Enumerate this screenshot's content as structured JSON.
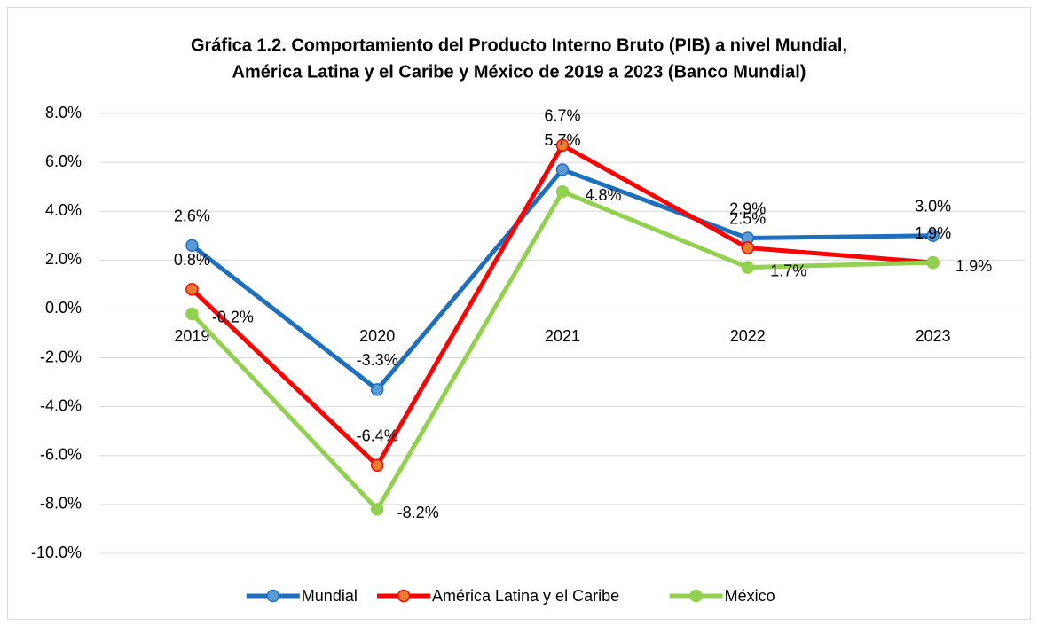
{
  "chart_data": {
    "type": "line",
    "title": "Gráfica 1.2. Comportamiento del Producto Interno Bruto (PIB) a nivel Mundial,",
    "subtitle": "América Latina y el Caribe y México de 2019 a 2023 (Banco Mundial)",
    "categories": [
      "2019",
      "2020",
      "2021",
      "2022",
      "2023"
    ],
    "series": [
      {
        "name": "Mundial",
        "color": "#1f6fbf",
        "marker_color": "#5b9bd5",
        "values": [
          2.6,
          -3.3,
          5.7,
          2.9,
          3.0
        ],
        "value_labels": [
          "2.6%",
          "-3.3%",
          "5.7%",
          "2.9%",
          "3.0%"
        ]
      },
      {
        "name": "América Latina y el Caribe",
        "color": "#ff0000",
        "marker_color": "#ed7d31",
        "values": [
          0.8,
          -6.4,
          6.7,
          2.5,
          1.9
        ],
        "value_labels": [
          "0.8%",
          "-6.4%",
          "6.7%",
          "2.5%",
          "1.9%"
        ]
      },
      {
        "name": "México",
        "color": "#92d050",
        "marker_color": "#92d050",
        "values": [
          -0.2,
          -8.2,
          4.8,
          1.7,
          1.9
        ],
        "value_labels": [
          "-0.2%",
          "-8.2%",
          "4.8%",
          "1.7%",
          "1.9%"
        ]
      }
    ],
    "ylim": [
      -10,
      8
    ],
    "yticks": [
      {
        "value": -10,
        "label": "-10.0%"
      },
      {
        "value": -8,
        "label": "-8.0%"
      },
      {
        "value": -6,
        "label": "-6.0%"
      },
      {
        "value": -4,
        "label": "-4.0%"
      },
      {
        "value": -2,
        "label": "-2.0%"
      },
      {
        "value": 0,
        "label": "0.0%"
      },
      {
        "value": 2,
        "label": "2.0%"
      },
      {
        "value": 4,
        "label": "4.0%"
      },
      {
        "value": 6,
        "label": "6.0%"
      },
      {
        "value": 8,
        "label": "8.0%"
      }
    ],
    "grid": true,
    "legend": "bottom"
  }
}
